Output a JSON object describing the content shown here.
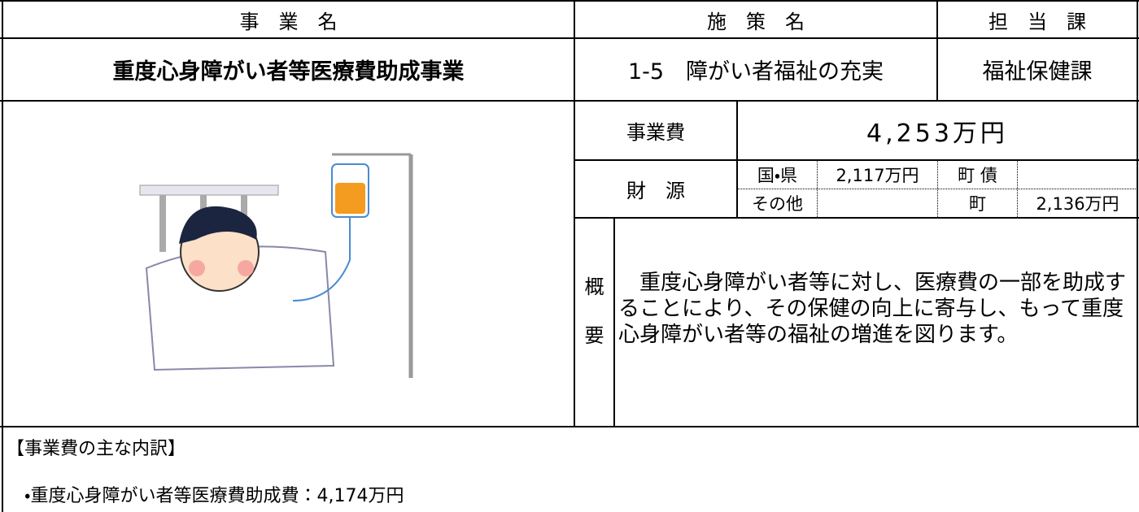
{
  "header": {
    "project_label": "事　業　名",
    "policy_label": "施　策　名",
    "department_label": "担　当　課"
  },
  "project": {
    "name": "重度心身障がい者等医療費助成事業",
    "policy": "1-5　障がい者福祉の充実",
    "department": "福祉保健課"
  },
  "cost": {
    "label": "事業費",
    "value": "4,253万円"
  },
  "funding": {
    "label": "財　源",
    "national_prefecture_label": "国・県",
    "national_prefecture_value": "2,117万円",
    "bond_label": "町 債",
    "other_label": "その他",
    "town_label": "町",
    "town_value": "2,136万円"
  },
  "summary": {
    "label_1": "概",
    "label_2": "要",
    "text": "　重度心身障がい者等に対し、医療費の一部を助成することにより、その保健の向上に寄与し、もって重度心身障がい者等の福祉の増進を図ります。"
  },
  "breakdown": {
    "title": "【事業費の主な内訳】",
    "items": [
      "・重度心身障がい者等医療費助成費：4,174万円"
    ]
  }
}
